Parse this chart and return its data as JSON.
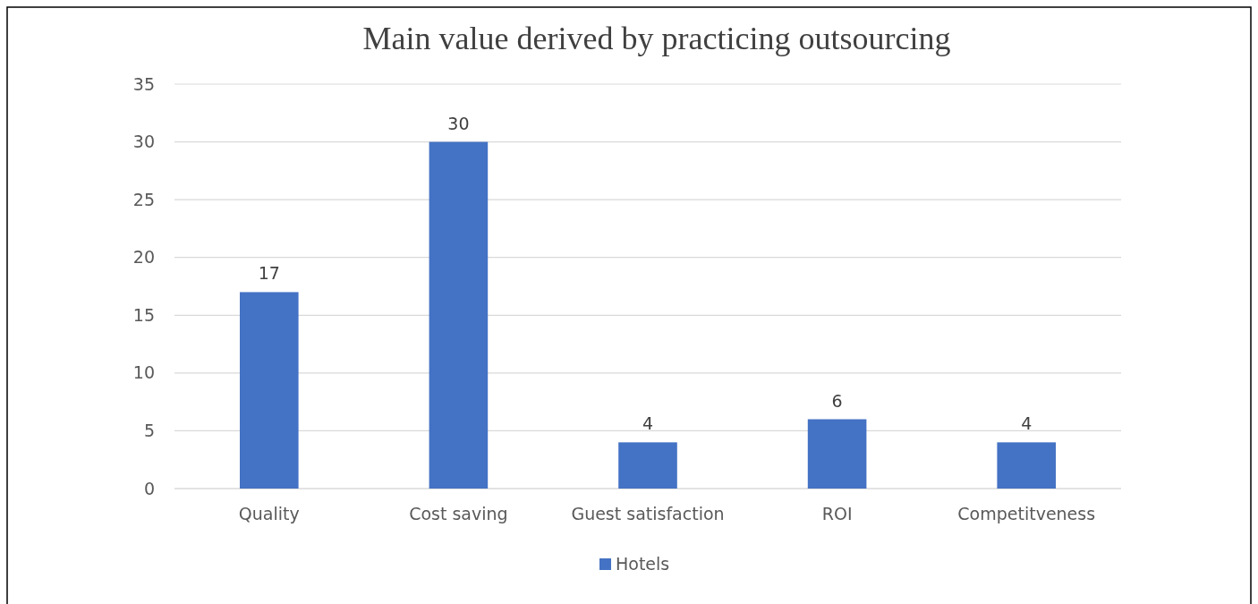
{
  "chart_data": {
    "type": "bar",
    "title": "Main value derived by practicing outsourcing",
    "categories": [
      "Quality",
      "Cost saving",
      "Guest satisfaction",
      "ROI",
      "Competitveness"
    ],
    "series": [
      {
        "name": "Hotels",
        "color": "#4472c4",
        "values": [
          17,
          30,
          4,
          6,
          4
        ]
      }
    ],
    "ylim": [
      0,
      35
    ],
    "yticks": [
      0,
      5,
      10,
      15,
      20,
      25,
      30,
      35
    ],
    "grid": "y",
    "legend": "bottom",
    "data_labels": true
  }
}
